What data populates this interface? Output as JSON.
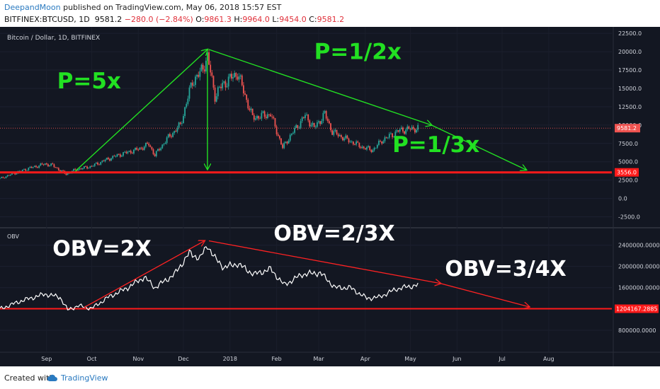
{
  "header": {
    "author": "DeepandMoon",
    "published_text": " published on TradingView.com, May 06, 2018 15:57 EST",
    "symbol": "BITFINEX:BTCUSD, 1D",
    "last_price": "9581.2",
    "change": "−280.0 (−2.84%)",
    "open_label": "O:",
    "open_value": "9861.3",
    "high_label": "H:",
    "high_value": "9964.0",
    "low_label": "L:",
    "low_value": "9454.0",
    "close_label": "C:",
    "close_value": "9581.2"
  },
  "footer": {
    "created_with": "Created with",
    "brand": "TradingView",
    "brand_icon": "cloud-icon"
  },
  "colors": {
    "background": "#131722",
    "candle_up": "#26a69a",
    "candle_down": "#ef5350",
    "arrow_green": "#22e022",
    "arrow_red": "#ff2222",
    "hline_red": "#ff1a1a",
    "obv_line": "#ffffff",
    "price_tag_bg": "#ff1a1a"
  },
  "chart_data": [
    {
      "type": "candlestick",
      "title": "Bitcoin / Dollar, 1D, BITFINEX",
      "y_ticks": [
        22500.0,
        20000.0,
        17500.0,
        15000.0,
        12500.0,
        10000.0,
        7500.0,
        5000.0,
        2500.0,
        0.0,
        -2500.0
      ],
      "y_tick_labels": [
        "22500.0",
        "20000.0",
        "17500.0",
        "15000.0",
        "12500.0",
        "10000.0",
        "7500.0",
        "5000.0",
        "2500.0",
        "0.0",
        "-2500.0"
      ],
      "ylim": [
        -3800,
        23000
      ],
      "x_range": [
        "2017-08-01",
        "2018-09-12"
      ],
      "x_ticks": [
        "2017-09-01",
        "2017-10-01",
        "2017-11-01",
        "2017-12-01",
        "2018-01-01",
        "2018-02-01",
        "2018-03-01",
        "2018-04-01",
        "2018-05-01",
        "2018-06-01",
        "2018-07-01",
        "2018-08-01"
      ],
      "x_tick_labels": [
        "Sep",
        "Oct",
        "Nov",
        "Dec",
        "2018",
        "Feb",
        "Mar",
        "Apr",
        "May",
        "Jun",
        "Jul",
        "Aug"
      ],
      "close_series": [
        {
          "date": "2017-08-01",
          "close": 2700
        },
        {
          "date": "2017-08-10",
          "close": 3400
        },
        {
          "date": "2017-08-20",
          "close": 4100
        },
        {
          "date": "2017-08-31",
          "close": 4700
        },
        {
          "date": "2017-09-05",
          "close": 4500
        },
        {
          "date": "2017-09-14",
          "close": 3300
        },
        {
          "date": "2017-09-20",
          "close": 3900
        },
        {
          "date": "2017-10-01",
          "close": 4400
        },
        {
          "date": "2017-10-12",
          "close": 5400
        },
        {
          "date": "2017-10-20",
          "close": 6000
        },
        {
          "date": "2017-11-01",
          "close": 6700
        },
        {
          "date": "2017-11-08",
          "close": 7400
        },
        {
          "date": "2017-11-12",
          "close": 5900
        },
        {
          "date": "2017-11-20",
          "close": 8100
        },
        {
          "date": "2017-11-29",
          "close": 10000
        },
        {
          "date": "2017-12-07",
          "close": 16000
        },
        {
          "date": "2017-12-12",
          "close": 17000
        },
        {
          "date": "2017-12-17",
          "close": 19300
        },
        {
          "date": "2017-12-22",
          "close": 14000
        },
        {
          "date": "2017-12-27",
          "close": 15500
        },
        {
          "date": "2018-01-06",
          "close": 17100
        },
        {
          "date": "2018-01-16",
          "close": 11000
        },
        {
          "date": "2018-01-28",
          "close": 11500
        },
        {
          "date": "2018-02-05",
          "close": 6900
        },
        {
          "date": "2018-02-10",
          "close": 8500
        },
        {
          "date": "2018-02-20",
          "close": 11300
        },
        {
          "date": "2018-02-26",
          "close": 9600
        },
        {
          "date": "2018-03-05",
          "close": 11500
        },
        {
          "date": "2018-03-10",
          "close": 9100
        },
        {
          "date": "2018-03-18",
          "close": 8200
        },
        {
          "date": "2018-03-31",
          "close": 6900
        },
        {
          "date": "2018-04-06",
          "close": 6600
        },
        {
          "date": "2018-04-12",
          "close": 7900
        },
        {
          "date": "2018-04-24",
          "close": 9300
        },
        {
          "date": "2018-05-06",
          "close": 9581.2
        }
      ],
      "horizontal_lines": [
        {
          "value": 3556.0,
          "label": "3556.0"
        }
      ],
      "last_price_label": "9581.2",
      "last_price_value": 9581.2,
      "annotations": [
        {
          "text": "P=5x",
          "x": "2017-09-08",
          "y": 15000
        },
        {
          "text": "P=1/2x",
          "x": "2018-02-26",
          "y": 19000
        },
        {
          "text": "P=1/3x",
          "x": "2018-04-19",
          "y": 6300
        }
      ],
      "arrows": [
        {
          "from": [
            "2017-09-20",
            3700
          ],
          "to": [
            "2017-12-17",
            20300
          ]
        },
        {
          "from": [
            "2017-12-18",
            20300
          ],
          "to": [
            "2018-05-15",
            10000
          ]
        },
        {
          "from": [
            "2018-05-15",
            10000
          ],
          "to": [
            "2018-07-17",
            3900
          ]
        },
        {
          "from": [
            "2017-12-17",
            19800
          ],
          "to": [
            "2017-12-17",
            4000
          ]
        }
      ]
    },
    {
      "type": "line",
      "title": "OBV",
      "y_ticks": [
        2400000.0,
        2000000.0,
        1600000.0,
        800000.0
      ],
      "y_tick_labels": [
        "2400000.0000",
        "2000000.0000",
        "1600000.0000",
        "800000.0000"
      ],
      "ylim": [
        400000,
        2700000
      ],
      "series": [
        {
          "values": [
            {
              "date": "2017-08-01",
              "v": 1200000
            },
            {
              "date": "2017-08-15",
              "v": 1350000
            },
            {
              "date": "2017-08-31",
              "v": 1480000
            },
            {
              "date": "2017-09-10",
              "v": 1420000
            },
            {
              "date": "2017-09-15",
              "v": 1180000
            },
            {
              "date": "2017-09-22",
              "v": 1260000
            },
            {
              "date": "2017-10-01",
              "v": 1210000
            },
            {
              "date": "2017-10-12",
              "v": 1420000
            },
            {
              "date": "2017-10-25",
              "v": 1600000
            },
            {
              "date": "2017-11-05",
              "v": 1800000
            },
            {
              "date": "2017-11-12",
              "v": 1600000
            },
            {
              "date": "2017-11-25",
              "v": 1850000
            },
            {
              "date": "2017-12-05",
              "v": 2250000
            },
            {
              "date": "2017-12-12",
              "v": 2150000
            },
            {
              "date": "2017-12-17",
              "v": 2400000
            },
            {
              "date": "2017-12-22",
              "v": 2150000
            },
            {
              "date": "2017-12-28",
              "v": 1980000
            },
            {
              "date": "2018-01-06",
              "v": 2050000
            },
            {
              "date": "2018-01-17",
              "v": 1850000
            },
            {
              "date": "2018-01-28",
              "v": 1950000
            },
            {
              "date": "2018-02-06",
              "v": 1650000
            },
            {
              "date": "2018-02-18",
              "v": 1850000
            },
            {
              "date": "2018-03-02",
              "v": 1880000
            },
            {
              "date": "2018-03-12",
              "v": 1600000
            },
            {
              "date": "2018-03-22",
              "v": 1600000
            },
            {
              "date": "2018-04-02",
              "v": 1400000
            },
            {
              "date": "2018-04-10",
              "v": 1420000
            },
            {
              "date": "2018-04-22",
              "v": 1580000
            },
            {
              "date": "2018-05-06",
              "v": 1650000
            }
          ]
        }
      ],
      "horizontal_lines": [
        {
          "value": 1204167.2885,
          "label": "1204167.2885"
        }
      ],
      "annotations": [
        {
          "text": "OBV=2X",
          "x": "2017-09-05",
          "y": 2200000
        },
        {
          "text": "OBV=2/3X",
          "x": "2018-01-30",
          "y": 2490000
        },
        {
          "text": "OBV=3/4X",
          "x": "2018-05-24",
          "y": 1820000
        }
      ],
      "arrows": [
        {
          "from": [
            "2017-09-26",
            1230000
          ],
          "to": [
            "2017-12-15",
            2480000
          ]
        },
        {
          "from": [
            "2017-12-18",
            2480000
          ],
          "to": [
            "2018-05-21",
            1680000
          ]
        },
        {
          "from": [
            "2018-05-21",
            1680000
          ],
          "to": [
            "2018-07-19",
            1240000
          ]
        }
      ]
    }
  ]
}
